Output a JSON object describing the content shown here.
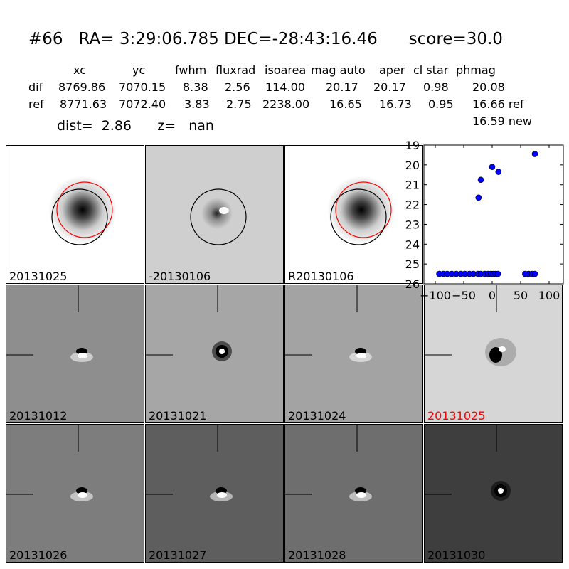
{
  "header": {
    "title": "#66   RA= 3:29:06.785 DEC=-28:43:16.46      score=30.0",
    "columns": [
      "xc",
      "yc",
      "fwhm",
      "fluxrad",
      "isoarea",
      "mag auto",
      "aper",
      "cl star",
      "phmag"
    ],
    "rows": [
      {
        "label": "dif",
        "values": [
          "8769.86",
          "7070.15",
          "8.38",
          "2.56",
          "114.00",
          "20.17",
          "20.17",
          "0.98",
          "20.08"
        ]
      },
      {
        "label": "ref",
        "values": [
          "8771.63",
          "7072.40",
          "3.83",
          "2.75",
          "2238.00",
          "16.65",
          "16.73",
          "0.95",
          "16.66 ref"
        ]
      }
    ],
    "extra": "16.59 new",
    "dist": "dist=  2.86      z=   nan"
  },
  "panels": [
    {
      "label": "20131025",
      "bg": "#ffffff",
      "type": "ref-circles",
      "highlight": false
    },
    {
      "label": "-20130106",
      "bg": "#cfcfcf",
      "type": "diff-circle",
      "highlight": false
    },
    {
      "label": "R20130106",
      "bg": "#ffffff",
      "type": "ref-circles",
      "highlight": false
    },
    {
      "label": "20131012",
      "bg": "#8e8e8e",
      "type": "cutout",
      "highlight": false
    },
    {
      "label": "20131021",
      "bg": "#a6a6a6",
      "type": "cutout-ring",
      "highlight": false
    },
    {
      "label": "20131024",
      "bg": "#a3a3a3",
      "type": "cutout",
      "highlight": false
    },
    {
      "label": "20131025",
      "bg": "#d6d6d6",
      "type": "cutout-dark",
      "highlight": true
    },
    {
      "label": "20131026",
      "bg": "#7d7d7d",
      "type": "cutout",
      "highlight": false
    },
    {
      "label": "20131027",
      "bg": "#5e5e5e",
      "type": "cutout",
      "highlight": false
    },
    {
      "label": "20131028",
      "bg": "#6e6e6e",
      "type": "cutout",
      "highlight": false
    },
    {
      "label": "20131030",
      "bg": "#3e3e3e",
      "type": "cutout-ring",
      "highlight": false
    }
  ],
  "colors": {
    "highlight": "#ff0000",
    "marker": "#0000ff",
    "circle_red": "#ff0000",
    "circle_black": "#000000"
  },
  "chart_data": {
    "type": "scatter",
    "title": "",
    "xlabel": "",
    "ylabel": "",
    "xlim": [
      -120,
      125
    ],
    "ylim": [
      26,
      19
    ],
    "xticks": [
      -100,
      -50,
      0,
      50,
      100
    ],
    "yticks": [
      19,
      20,
      21,
      22,
      23,
      24,
      25,
      26
    ],
    "series": [
      {
        "x": [
          -93,
          -86,
          -79,
          -71,
          -63,
          -55,
          -48,
          -40,
          -33,
          -25,
          -20,
          -13,
          -7,
          -2,
          2,
          6,
          10,
          58,
          64,
          70,
          75,
          -24,
          -20,
          0,
          11,
          75
        ],
        "y": [
          25.5,
          25.5,
          25.5,
          25.5,
          25.5,
          25.5,
          25.5,
          25.5,
          25.5,
          25.5,
          25.5,
          25.5,
          25.5,
          25.5,
          25.5,
          25.5,
          25.5,
          25.5,
          25.5,
          25.5,
          25.5,
          21.65,
          20.75,
          20.1,
          20.35,
          19.45
        ]
      }
    ]
  }
}
